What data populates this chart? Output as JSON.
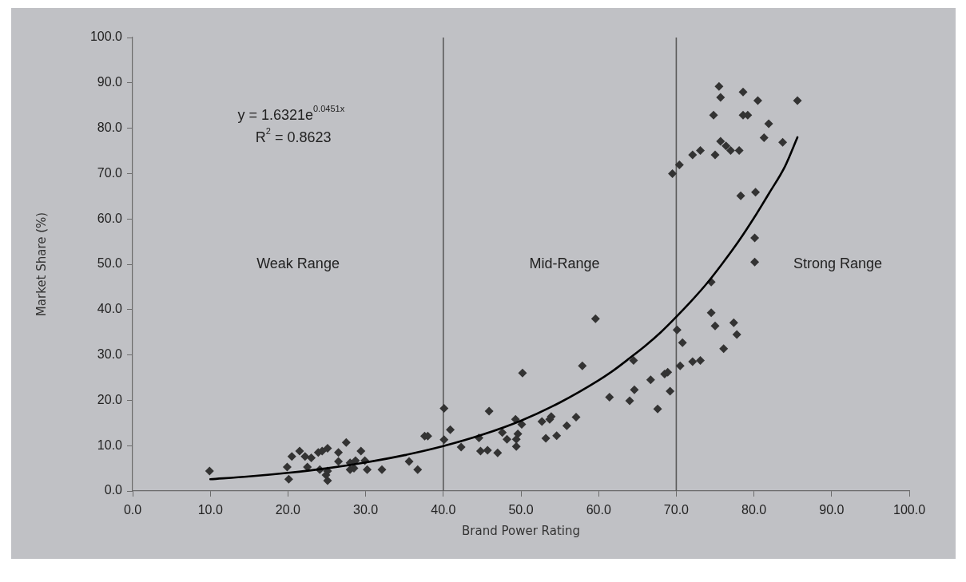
{
  "chart_data": {
    "type": "scatter",
    "xlabel": "Brand Power Rating",
    "ylabel": "Market Share (%)",
    "xlim": [
      0,
      100
    ],
    "ylim": [
      0,
      100
    ],
    "xticks": [
      {
        "value": 0,
        "label": "0.0"
      },
      {
        "value": 10,
        "label": "10.0"
      },
      {
        "value": 20,
        "label": "20.0"
      },
      {
        "value": 30,
        "label": "30.0"
      },
      {
        "value": 40,
        "label": "40.0"
      },
      {
        "value": 50,
        "label": "50.0"
      },
      {
        "value": 60,
        "label": "60.0"
      },
      {
        "value": 70,
        "label": "70.0"
      },
      {
        "value": 80,
        "label": "80.0"
      },
      {
        "value": 90,
        "label": "90.0"
      },
      {
        "value": 100,
        "label": "100.0"
      }
    ],
    "yticks": [
      {
        "value": 0,
        "label": "0.0"
      },
      {
        "value": 10,
        "label": "10.0"
      },
      {
        "value": 20,
        "label": "20.0"
      },
      {
        "value": 30,
        "label": "30.0"
      },
      {
        "value": 40,
        "label": "40.0"
      },
      {
        "value": 50,
        "label": "50.0"
      },
      {
        "value": 60,
        "label": "60.0"
      },
      {
        "value": 70,
        "label": "70.0"
      },
      {
        "value": 80,
        "label": "80.0"
      },
      {
        "value": 90,
        "label": "90.0"
      },
      {
        "value": 100,
        "label": "100.0"
      }
    ],
    "marker": "diamond",
    "series": [
      {
        "type": "scatter",
        "color": "#333333",
        "x": [
          9.9,
          20.1,
          19.9,
          20.5,
          21.5,
          22.2,
          23.0,
          22.5,
          23.9,
          24.4,
          25.1,
          24.1,
          25.1,
          25.1,
          24.9,
          26.5,
          26.5,
          27.5,
          28.0,
          28.7,
          28.5,
          28.0,
          29.4,
          29.9,
          30.2,
          32.1,
          35.6,
          36.7,
          37.6,
          38.0,
          40.1,
          40.1,
          40.9,
          42.3,
          44.6,
          44.8,
          45.7,
          45.9,
          47.0,
          47.6,
          48.2,
          49.3,
          50.1,
          49.6,
          49.4,
          49.4,
          50.2,
          52.7,
          53.7,
          53.9,
          53.2,
          54.6,
          55.9,
          57.1,
          57.9,
          59.6,
          61.4,
          64.5,
          64.0,
          64.6,
          66.7,
          68.5,
          68.9,
          69.2,
          67.6,
          70.1,
          70.8,
          70.5,
          72.1,
          73.1,
          74.5,
          74.5,
          75.0,
          77.4,
          77.8,
          76.1,
          80.1,
          75.5,
          75.7,
          78.6,
          80.5,
          85.6,
          74.8,
          78.6,
          79.2,
          81.9,
          81.3,
          83.7,
          75.7,
          76.4,
          77.0,
          78.1,
          73.1,
          72.1,
          75.0,
          70.4,
          69.5,
          78.3,
          80.2,
          80.1
        ],
        "values": [
          4.4,
          2.6,
          5.3,
          7.6,
          8.8,
          7.6,
          7.3,
          5.3,
          8.5,
          8.8,
          9.4,
          4.7,
          4.4,
          2.3,
          3.5,
          8.5,
          6.5,
          10.7,
          4.7,
          6.7,
          5.0,
          6.2,
          8.8,
          6.7,
          4.7,
          4.7,
          6.5,
          4.7,
          12.1,
          12.1,
          18.2,
          11.3,
          13.5,
          9.7,
          11.7,
          8.8,
          9.0,
          17.6,
          8.4,
          12.9,
          11.4,
          15.8,
          14.7,
          12.6,
          11.4,
          9.8,
          26.0,
          15.3,
          15.8,
          16.4,
          11.6,
          12.2,
          14.4,
          16.3,
          27.6,
          38.0,
          20.7,
          28.8,
          19.9,
          22.3,
          24.5,
          25.8,
          26.2,
          22.0,
          18.1,
          35.5,
          32.7,
          27.6,
          28.5,
          28.8,
          46.1,
          39.3,
          36.4,
          37.1,
          34.5,
          31.4,
          50.5,
          89.2,
          86.8,
          88.0,
          86.1,
          86.1,
          82.9,
          82.9,
          82.9,
          81.0,
          77.9,
          76.9,
          77.1,
          76.1,
          75.1,
          75.1,
          75.1,
          74.1,
          74.1,
          71.9,
          70.0,
          65.1,
          65.9,
          55.8
        ]
      },
      {
        "type": "line",
        "color": "#000000",
        "marker": "none",
        "x": [
          10,
          15,
          20,
          25,
          30,
          35,
          40,
          45,
          50,
          55,
          60,
          62,
          64,
          66,
          68,
          70,
          72,
          74,
          76,
          78,
          80,
          82,
          84,
          85.6
        ],
        "values": [
          2.6,
          3.2,
          4.0,
          5.0,
          6.3,
          7.9,
          9.9,
          12.4,
          15.5,
          19.5,
          24.4,
          26.7,
          29.3,
          32.0,
          35.0,
          38.4,
          42.0,
          45.9,
          50.3,
          55.0,
          60.2,
          65.8,
          71.6,
          78.0
        ]
      }
    ],
    "ref_lines": [
      {
        "axis": "x",
        "value": 40,
        "color": "#5a5a5a"
      },
      {
        "axis": "x",
        "value": 70,
        "color": "#5a5a5a"
      }
    ],
    "annotations": [
      "y = 1.6321e$^{0.0451x}$",
      "R$^{2}$ = 0.8623",
      "Weak Range",
      "Mid-Range",
      "Strong Range"
    ]
  }
}
